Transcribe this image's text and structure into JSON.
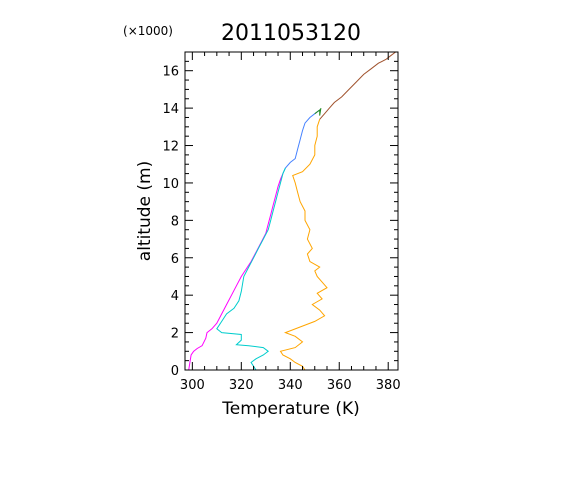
{
  "chart_data": {
    "type": "line",
    "title": "2011053120",
    "multiplier_label": "(×1000)",
    "xlabel": "Temperature (K)",
    "ylabel": "altitude (m)",
    "xlim": [
      297,
      384
    ],
    "ylim": [
      0,
      17
    ],
    "x_ticks": [
      "300",
      "320",
      "340",
      "360",
      "380"
    ],
    "y_ticks": [
      "0",
      "2",
      "4",
      "6",
      "8",
      "10",
      "12",
      "14",
      "16"
    ],
    "grid": false,
    "series": [
      {
        "color": "#ff00ff",
        "points": [
          [
            298.5,
            0.0
          ],
          [
            299,
            0.4
          ],
          [
            299.5,
            0.8
          ],
          [
            300.5,
            1.0
          ],
          [
            302,
            1.15
          ],
          [
            304,
            1.3
          ],
          [
            305.5,
            1.7
          ],
          [
            306,
            2.0
          ],
          [
            308,
            2.2
          ],
          [
            310,
            2.5
          ],
          [
            312,
            3.0
          ],
          [
            314,
            3.5
          ],
          [
            316,
            4.0
          ],
          [
            318,
            4.5
          ],
          [
            320,
            5.0
          ],
          [
            322,
            5.4
          ],
          [
            324,
            5.8
          ],
          [
            326,
            6.3
          ],
          [
            328,
            6.8
          ],
          [
            330,
            7.3
          ],
          [
            331,
            7.8
          ],
          [
            332,
            8.3
          ],
          [
            333,
            8.8
          ],
          [
            334,
            9.3
          ],
          [
            335,
            9.8
          ],
          [
            336,
            10.2
          ],
          [
            337,
            10.5
          ]
        ]
      },
      {
        "color": "#4682ff",
        "points": [
          [
            337,
            10.5
          ],
          [
            338,
            10.8
          ],
          [
            340,
            11.1
          ],
          [
            342,
            11.3
          ],
          [
            343,
            11.8
          ],
          [
            344,
            12.3
          ],
          [
            345,
            12.8
          ],
          [
            346,
            13.2
          ],
          [
            348,
            13.5
          ],
          [
            350,
            13.7
          ],
          [
            352,
            13.9
          ]
        ]
      },
      {
        "color": "#00cdcd",
        "points": [
          [
            326,
            0.0
          ],
          [
            325,
            0.2
          ],
          [
            324,
            0.4
          ],
          [
            326,
            0.6
          ],
          [
            329,
            0.8
          ],
          [
            331,
            1.0
          ],
          [
            329,
            1.2
          ],
          [
            323,
            1.3
          ],
          [
            318,
            1.35
          ],
          [
            320,
            1.6
          ],
          [
            320,
            1.9
          ],
          [
            312,
            2.0
          ],
          [
            310,
            2.2
          ],
          [
            312,
            2.6
          ],
          [
            314,
            3.0
          ],
          [
            317,
            3.3
          ],
          [
            319,
            3.7
          ],
          [
            320,
            4.2
          ],
          [
            321,
            5.0
          ],
          [
            323,
            5.5
          ],
          [
            325,
            6.0
          ],
          [
            327,
            6.5
          ],
          [
            329,
            7.0
          ],
          [
            331,
            7.5
          ],
          [
            332,
            8.0
          ],
          [
            333,
            8.5
          ],
          [
            334,
            9.0
          ],
          [
            335,
            9.5
          ],
          [
            336,
            10.0
          ],
          [
            337,
            10.5
          ],
          [
            338,
            10.8
          ]
        ]
      },
      {
        "color": "#228b22",
        "points": [
          [
            350,
            13.7
          ],
          [
            352,
            13.9
          ],
          [
            352,
            13.6
          ],
          [
            352.5,
            14.0
          ]
        ]
      },
      {
        "color": "#ffa500",
        "points": [
          [
            346,
            0.0
          ],
          [
            345,
            0.2
          ],
          [
            342,
            0.4
          ],
          [
            340,
            0.6
          ],
          [
            337,
            0.8
          ],
          [
            336,
            1.0
          ],
          [
            342,
            1.2
          ],
          [
            345,
            1.5
          ],
          [
            342,
            1.8
          ],
          [
            338,
            2.0
          ],
          [
            344,
            2.3
          ],
          [
            350,
            2.6
          ],
          [
            354,
            2.9
          ],
          [
            352,
            3.2
          ],
          [
            349,
            3.5
          ],
          [
            353,
            3.8
          ],
          [
            351,
            4.1
          ],
          [
            355,
            4.4
          ],
          [
            353,
            4.7
          ],
          [
            351,
            5.0
          ],
          [
            350,
            5.3
          ],
          [
            352,
            5.5
          ],
          [
            348,
            5.8
          ],
          [
            347,
            6.2
          ],
          [
            349,
            6.5
          ],
          [
            347,
            7.0
          ],
          [
            348,
            7.5
          ],
          [
            346,
            8.0
          ],
          [
            346,
            8.5
          ],
          [
            344,
            9.0
          ],
          [
            343,
            9.5
          ],
          [
            342,
            10.0
          ],
          [
            341,
            10.4
          ],
          [
            345,
            10.6
          ],
          [
            348,
            11.0
          ],
          [
            350,
            11.5
          ],
          [
            350,
            12.0
          ],
          [
            351,
            12.5
          ],
          [
            351,
            13.0
          ],
          [
            352,
            13.4
          ]
        ]
      },
      {
        "color": "#a0522d",
        "points": [
          [
            352,
            13.4
          ],
          [
            354,
            13.7
          ],
          [
            356,
            14.0
          ],
          [
            358,
            14.3
          ],
          [
            361,
            14.6
          ],
          [
            364,
            15.0
          ],
          [
            367,
            15.4
          ],
          [
            370,
            15.8
          ],
          [
            373,
            16.1
          ],
          [
            376,
            16.4
          ],
          [
            379,
            16.6
          ],
          [
            381,
            16.8
          ],
          [
            383,
            17.0
          ]
        ]
      }
    ]
  }
}
